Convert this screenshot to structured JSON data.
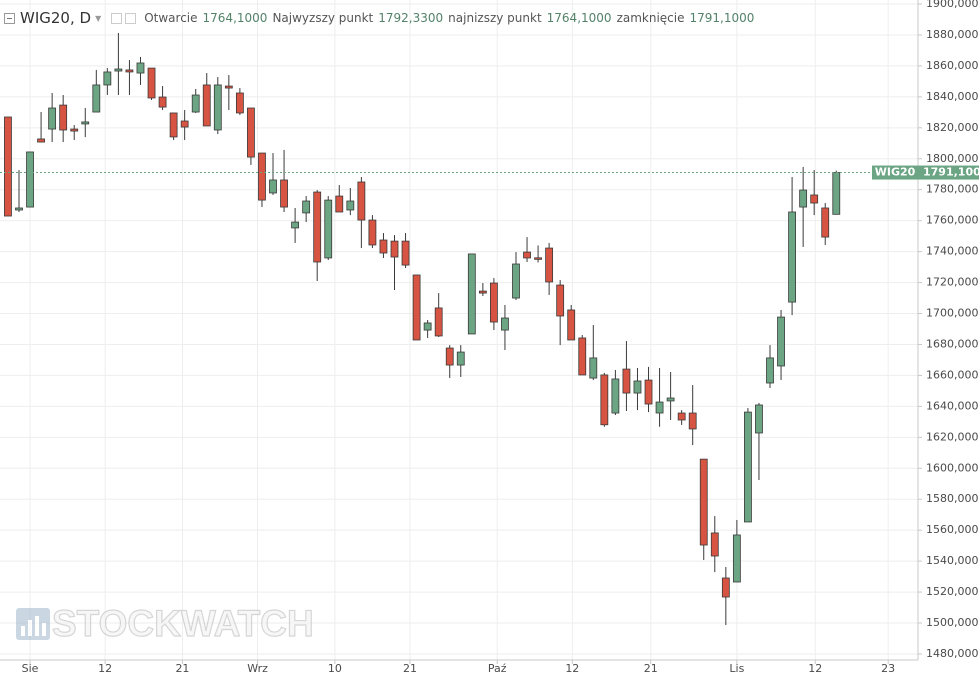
{
  "chart_data": {
    "type": "candlestick",
    "title": "WIG20, D",
    "header": [
      {
        "label": "Otwarcie",
        "value": "1764,1000"
      },
      {
        "label": "Najwyzszy punkt",
        "value": "1792,3300"
      },
      {
        "label": "najnizszy punkt",
        "value": "1764,1000"
      },
      {
        "label": "zamknięcie",
        "value": "1791,1000"
      }
    ],
    "watermark": "STOCKWATCH",
    "series": [
      {
        "name": "WIG20",
        "up_color": "#6ba583",
        "down_color": "#d75442",
        "open": [
          1827.0,
          1766.9,
          1768.8,
          1812.8,
          1819.2,
          1834.7,
          1819.2,
          1822.5,
          1830.2,
          1847.7,
          1856.7,
          1857.4,
          1855.4,
          1858.6,
          1839.9,
          1829.6,
          1824.4,
          1830.2,
          1847.7,
          1818.6,
          1847.0,
          1842.5,
          1832.8,
          1803.7,
          1777.9,
          1786.3,
          1755.3,
          1765.0,
          1778.5,
          1735.9,
          1775.9,
          1766.9,
          1785.0,
          1760.4,
          1747.5,
          1746.8,
          1746.8,
          1724.9,
          1689.3,
          1703.6,
          1677.7,
          1666.7,
          1686.8,
          1714.5,
          1719.7,
          1689.3,
          1710.0,
          1739.7,
          1736.0,
          1742.3,
          1718.4,
          1702.3,
          1684.2,
          1658.3,
          1660.3,
          1635.7,
          1664.1,
          1648.6,
          1657.0,
          1635.7,
          1643.5,
          1635.7,
          1635.7,
          1605.9,
          1558.2,
          1529.1,
          1526.5,
          1565.3,
          1622.8,
          1655.1,
          1666.1,
          1707.4,
          1768.8,
          1776.6,
          1768.2,
          1764.1
        ],
        "high": [
          1827.0,
          1792.7,
          1804.4,
          1830.2,
          1842.5,
          1841.2,
          1821.8,
          1832.8,
          1857.4,
          1858.6,
          1881.3,
          1863.8,
          1865.8,
          1858.6,
          1847.0,
          1829.6,
          1831.5,
          1845.1,
          1855.4,
          1852.8,
          1854.1,
          1845.7,
          1832.8,
          1803.7,
          1803.7,
          1805.7,
          1768.2,
          1775.9,
          1779.8,
          1775.9,
          1783.0,
          1781.1,
          1788.2,
          1763.6,
          1752.0,
          1750.7,
          1752.0,
          1724.9,
          1695.8,
          1713.2,
          1679.6,
          1679.6,
          1738.5,
          1719.7,
          1722.9,
          1705.5,
          1739.7,
          1749.4,
          1744.0,
          1745.6,
          1721.6,
          1705.5,
          1686.1,
          1692.6,
          1661.6,
          1663.5,
          1682.2,
          1664.8,
          1665.5,
          1664.8,
          1662.2,
          1637.6,
          1653.8,
          1605.9,
          1569.1,
          1536.2,
          1566.6,
          1638.9,
          1642.2,
          1679.6,
          1702.3,
          1788.2,
          1794.7,
          1792.7,
          1771.4,
          1792.33
        ],
        "low": [
          1763.0,
          1765.6,
          1768.8,
          1810.8,
          1810.8,
          1810.8,
          1812.1,
          1814.0,
          1830.2,
          1841.2,
          1841.2,
          1841.2,
          1847.7,
          1838.0,
          1831.5,
          1812.1,
          1812.1,
          1829.6,
          1821.2,
          1816.0,
          1831.5,
          1828.3,
          1796.0,
          1768.8,
          1776.6,
          1765.6,
          1745.6,
          1759.1,
          1721.0,
          1734.6,
          1765.6,
          1763.6,
          1742.3,
          1742.3,
          1735.9,
          1715.2,
          1729.4,
          1682.9,
          1684.2,
          1684.8,
          1658.3,
          1659.0,
          1686.8,
          1711.3,
          1689.3,
          1676.4,
          1708.7,
          1733.3,
          1733.0,
          1712.0,
          1679.6,
          1682.9,
          1660.3,
          1657.0,
          1626.8,
          1634.4,
          1637.0,
          1637.6,
          1636.3,
          1626.8,
          1631.2,
          1628.0,
          1615.0,
          1540.7,
          1532.9,
          1498.7,
          1526.5,
          1565.3,
          1592.4,
          1651.9,
          1657.0,
          1699.0,
          1743.0,
          1763.6,
          1744.3,
          1764.1
        ],
        "close": [
          1763.0,
          1768.2,
          1804.4,
          1810.8,
          1832.8,
          1818.6,
          1817.9,
          1823.8,
          1847.7,
          1856.1,
          1858.0,
          1856.1,
          1861.9,
          1839.3,
          1833.4,
          1814.1,
          1820.5,
          1841.2,
          1821.2,
          1847.7,
          1845.7,
          1829.6,
          1801.1,
          1773.3,
          1786.3,
          1768.8,
          1759.1,
          1772.7,
          1733.3,
          1773.3,
          1765.6,
          1772.7,
          1760.4,
          1744.3,
          1739.1,
          1736.5,
          1731.3,
          1682.9,
          1693.9,
          1685.5,
          1666.7,
          1675.1,
          1738.5,
          1713.2,
          1694.5,
          1697.1,
          1732.0,
          1735.9,
          1735.0,
          1720.4,
          1698.4,
          1682.9,
          1660.3,
          1671.3,
          1628.1,
          1657.7,
          1648.6,
          1656.4,
          1641.5,
          1642.8,
          1645.4,
          1631.2,
          1625.4,
          1550.4,
          1543.3,
          1516.8,
          1556.9,
          1636.3,
          1640.9,
          1671.3,
          1697.7,
          1765.6,
          1779.8,
          1771.4,
          1749.4,
          1791.1
        ]
      }
    ],
    "last_price_label": "1791,1000",
    "xlim": [
      -0.72,
      82.4
    ],
    "xticks": [
      {
        "value": 2.0,
        "label": "Sie"
      },
      {
        "value": 8.8,
        "label": "12"
      },
      {
        "value": 15.8,
        "label": "21"
      },
      {
        "value": 22.6,
        "label": "Wrz"
      },
      {
        "value": 29.6,
        "label": "10"
      },
      {
        "value": 36.4,
        "label": "21"
      },
      {
        "value": 44.3,
        "label": "Paź"
      },
      {
        "value": 51.1,
        "label": "12"
      },
      {
        "value": 58.2,
        "label": "21"
      },
      {
        "value": 66.0,
        "label": "Lis"
      },
      {
        "value": 73.1,
        "label": "12"
      },
      {
        "value": 79.7,
        "label": "23"
      }
    ],
    "ylim": [
      1476.1,
      1902.6
    ],
    "yticks": [
      {
        "value": 1480,
        "label": "1480,0000"
      },
      {
        "value": 1500,
        "label": "1500,0000"
      },
      {
        "value": 1520,
        "label": "1520,0000"
      },
      {
        "value": 1540,
        "label": "1540,0000"
      },
      {
        "value": 1560,
        "label": "1560,0000"
      },
      {
        "value": 1580,
        "label": "1580,0000"
      },
      {
        "value": 1600,
        "label": "1600,0000"
      },
      {
        "value": 1620,
        "label": "1620,0000"
      },
      {
        "value": 1640,
        "label": "1640,0000"
      },
      {
        "value": 1660,
        "label": "1660,0000"
      },
      {
        "value": 1680,
        "label": "1680,0000"
      },
      {
        "value": 1700,
        "label": "1700,0000"
      },
      {
        "value": 1720,
        "label": "1720,0000"
      },
      {
        "value": 1740,
        "label": "1740,0000"
      },
      {
        "value": 1760,
        "label": "1760,0000"
      },
      {
        "value": 1780,
        "label": "1780,0000"
      },
      {
        "value": 1800,
        "label": "1800,0000"
      },
      {
        "value": 1820,
        "label": "1820,0000"
      },
      {
        "value": 1840,
        "label": "1840,0000"
      },
      {
        "value": 1860,
        "label": "1860,0000"
      },
      {
        "value": 1880,
        "label": "1880,0000"
      },
      {
        "value": 1900,
        "label": "1900,0000"
      }
    ],
    "grid": true
  }
}
